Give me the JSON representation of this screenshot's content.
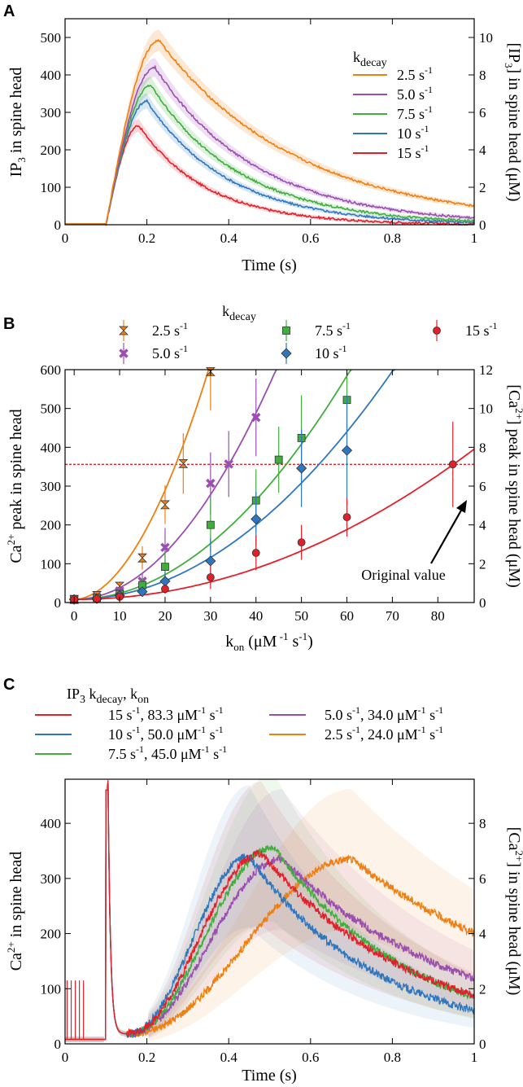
{
  "panels": {
    "A": {
      "letter": "A",
      "ylabel_main": "IP",
      "ylabel_sub": "3",
      "ylabel_tail": " in spine head",
      "y2label_pre": "[IP",
      "y2label_sub": "3",
      "y2label_tail": "] in spine head (μM)",
      "xlabel": "Time (s)",
      "legend_title_main": "k",
      "legend_title_sub": "decay"
    },
    "B": {
      "letter": "B",
      "ylabel_pre": "Ca",
      "ylabel_sup": "2+",
      "ylabel_tail": " peak in spine head",
      "y2label_pre": "[Ca",
      "y2label_sup": "2+",
      "y2label_tail": "] peak in spine head (μM)",
      "xlabel_main": "k",
      "xlabel_sub": "on",
      "xlabel_tail": " (μM",
      "xlabel_sup1": " -1",
      "xlabel_mid": " s",
      "xlabel_sup2": "-1",
      "xlabel_end": ")",
      "legend_title_main": "k",
      "legend_title_sub": "decay",
      "annotation": "Original value"
    },
    "C": {
      "letter": "C",
      "ylabel_pre": "Ca",
      "ylabel_sup": "2+",
      "ylabel_tail": " in spine head",
      "y2label_pre": "[Ca",
      "y2label_sup": "2+",
      "y2label_tail": "] in spine head (μM)",
      "xlabel": "Time (s)",
      "legend_title_a": "IP",
      "legend_title_sub3": "3",
      "legend_title_b": " k",
      "legend_title_sub": "decay",
      "legend_title_c": ",  k",
      "legend_title_sub2": "on"
    }
  },
  "chart_data": [
    {
      "panel": "A",
      "type": "line",
      "xlim": [
        0,
        1
      ],
      "ylim": [
        0,
        550
      ],
      "y2lim": [
        0,
        11
      ],
      "xticks": [
        "0",
        "0.2",
        "0.4",
        "0.6",
        "0.8",
        "1"
      ],
      "yticks": [
        "0",
        "100",
        "200",
        "300",
        "400",
        "500"
      ],
      "y2ticks": [
        "0",
        "2",
        "4",
        "6",
        "8",
        "10"
      ],
      "series": [
        {
          "name": "2.5 s-1",
          "label_main": "2.5 s",
          "label_sup": "-1",
          "color": "#f07f10",
          "peak": 492,
          "peak_t": 0.23,
          "end_value": 50
        },
        {
          "name": "5.0 s-1",
          "label_main": "5.0 s",
          "label_sup": "-1",
          "color": "#9a4fb0",
          "peak": 420,
          "peak_t": 0.22,
          "end_value": 18
        },
        {
          "name": "7.5 s-1",
          "label_main": "7.5 s",
          "label_sup": "-1",
          "color": "#3fae3c",
          "peak": 372,
          "peak_t": 0.21,
          "end_value": 10
        },
        {
          "name": "10 s-1",
          "label_main": "10  s",
          "label_sup": "-1",
          "color": "#2e76be",
          "peak": 330,
          "peak_t": 0.2,
          "end_value": 6
        },
        {
          "name": "15 s-1",
          "label_main": "15  s",
          "label_sup": "-1",
          "color": "#e2202a",
          "peak": 265,
          "peak_t": 0.18,
          "end_value": 2
        }
      ]
    },
    {
      "panel": "B",
      "type": "scatter",
      "xlim": [
        -2,
        88
      ],
      "ylim": [
        0,
        600
      ],
      "y2lim": [
        0,
        12
      ],
      "xticks": [
        "0",
        "10",
        "20",
        "30",
        "40",
        "50",
        "60",
        "70",
        "80"
      ],
      "yticks": [
        "0",
        "100",
        "200",
        "300",
        "400",
        "500",
        "600"
      ],
      "y2ticks": [
        "0",
        "2",
        "4",
        "6",
        "8",
        "10",
        "12"
      ],
      "reference_line_y": 356,
      "original_value": {
        "x": 83.3,
        "y": 356
      },
      "series": [
        {
          "name": "2.5 s-1",
          "label_main": "2.5 s",
          "label_sup": "-1",
          "color": "#f07f10",
          "marker": "star",
          "x": [
            0,
            5,
            10,
            15,
            20,
            24,
            30
          ],
          "y": [
            8,
            18,
            42,
            115,
            252,
            358,
            595
          ],
          "err": [
            5,
            6,
            12,
            30,
            50,
            78,
            100
          ],
          "fit": {
            "a": 0.95,
            "p": 1.9,
            "c": 8
          }
        },
        {
          "name": "5.0 s-1",
          "label_main": "5.0 s",
          "label_sup": "-1",
          "color": "#9a4fb0",
          "marker": "x",
          "x": [
            0,
            5,
            10,
            15,
            20,
            30,
            34,
            40
          ],
          "y": [
            8,
            14,
            30,
            55,
            142,
            307,
            357,
            477
          ],
          "err": [
            5,
            6,
            10,
            20,
            50,
            80,
            85,
            100
          ],
          "fit": {
            "a": 0.3,
            "p": 2.0,
            "c": 8
          }
        },
        {
          "name": "7.5 s-1",
          "label_main": "7.5 s",
          "label_sup": "-1",
          "color": "#3fae3c",
          "marker": "square",
          "x": [
            0,
            5,
            10,
            15,
            20,
            30,
            40,
            45,
            50,
            60
          ],
          "y": [
            8,
            12,
            22,
            45,
            92,
            200,
            263,
            368,
            424,
            522
          ],
          "err": [
            5,
            6,
            10,
            20,
            40,
            70,
            80,
            85,
            110,
            120
          ],
          "fit": {
            "a": 0.16,
            "p": 2.0,
            "c": 8
          }
        },
        {
          "name": "10 s-1",
          "label_main": "10  s",
          "label_sup": "-1",
          "color": "#2e76be",
          "marker": "diamond",
          "x": [
            0,
            5,
            10,
            15,
            20,
            30,
            40,
            50,
            60
          ],
          "y": [
            8,
            10,
            18,
            28,
            55,
            107,
            215,
            346,
            392
          ],
          "err": [
            5,
            6,
            8,
            12,
            25,
            60,
            70,
            100,
            140
          ],
          "fit": {
            "a": 0.12,
            "p": 2.0,
            "c": 8
          }
        },
        {
          "name": "15 s-1",
          "label_main": "15  s",
          "label_sup": "-1",
          "color": "#e2202a",
          "marker": "circle",
          "x": [
            0,
            5,
            10,
            20,
            30,
            40,
            50,
            60,
            83.3
          ],
          "y": [
            8,
            10,
            15,
            35,
            65,
            128,
            155,
            220,
            356
          ],
          "err": [
            5,
            6,
            6,
            12,
            30,
            45,
            45,
            50,
            110
          ],
          "fit": {
            "a": 0.05,
            "p": 2.0,
            "c": 8
          }
        }
      ]
    },
    {
      "panel": "C",
      "type": "line",
      "xlim": [
        0,
        1
      ],
      "ylim": [
        0,
        480
      ],
      "y2lim": [
        0,
        9.6
      ],
      "xticks": [
        "0",
        "0.2",
        "0.4",
        "0.6",
        "0.8",
        "1"
      ],
      "yticks": [
        "0",
        "100",
        "200",
        "300",
        "400"
      ],
      "y2ticks": [
        "0",
        "2",
        "4",
        "6",
        "8"
      ],
      "series": [
        {
          "name": "15 s-1, 83.3 μM-1 s-1",
          "label_a": "15 s",
          "label_sup1": "-1",
          "label_b": ", 83.3 μM",
          "label_sup2": "-1",
          "label_c": " s",
          "label_sup3": "-1",
          "color": "#e2202a",
          "peak": 345,
          "peak_t": 0.48,
          "end_value": 88,
          "onset": 0.25
        },
        {
          "name": "10 s-1, 50.0 μM-1 s-1",
          "label_a": "10 s",
          "label_sup1": "-1",
          "label_b": ", 50.0 μM",
          "label_sup2": "-1",
          "label_c": " s",
          "label_sup3": "-1",
          "color": "#2e76be",
          "peak": 340,
          "peak_t": 0.45,
          "end_value": 60,
          "onset": 0.22
        },
        {
          "name": "7.5 s-1, 45.0 μM-1 s-1",
          "label_a": "7.5 s",
          "label_sup1": "-1",
          "label_b": ", 45.0 μM",
          "label_sup2": "-1",
          "label_c": " s",
          "label_sup3": "-1",
          "color": "#3fae3c",
          "peak": 357,
          "peak_t": 0.51,
          "end_value": 85,
          "onset": 0.26
        },
        {
          "name": "5.0 s-1, 34.0 μM-1 s-1",
          "label_a": "5.0 s",
          "label_sup1": "-1",
          "label_b": ", 34.0 μM",
          "label_sup2": "-1",
          "label_c": " s",
          "label_sup3": "-1",
          "color": "#9a4fb0",
          "peak": 335,
          "peak_t": 0.53,
          "end_value": 118,
          "onset": 0.28
        },
        {
          "name": "2.5 s-1, 24.0 μM-1 s-1",
          "label_a": "2.5 s",
          "label_sup1": "-1",
          "label_b": ", 24.0 μM",
          "label_sup2": "-1",
          "label_c": " s",
          "label_sup3": "-1",
          "color": "#f07f10",
          "peak": 335,
          "peak_t": 0.7,
          "end_value": 200,
          "onset": 0.32
        }
      ]
    }
  ]
}
